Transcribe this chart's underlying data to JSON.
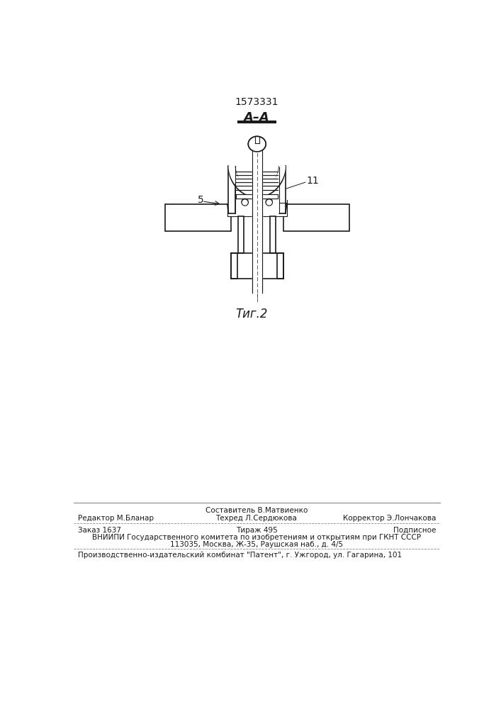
{
  "patent_number": "1573331",
  "section_label": "A–A",
  "fig_label": "Τиг.2",
  "label_5": "5",
  "label_11": "11",
  "footer_line1_left": "Редактор М.Бланар",
  "footer_line1_center_top": "Составитель В.Матвиенко",
  "footer_line1_center": "Техред Л.Сердюкова",
  "footer_line1_right": "Корректор Э.Лончакова",
  "footer_line2_left": "Заказ 1637",
  "footer_line2_center": "Тираж 495",
  "footer_line2_right": "Подписное",
  "footer_line3": "ВНИИПИ Государственного комитета по изобретениям и открытиям при ГКНТ СССР",
  "footer_line4": "113035, Москва, Ж-35, Раушская наб., д. 4/5",
  "footer_line5": "Производственно-издательский комбинат \"Патент\", г. Ужгород, ул. Гагарина, 101",
  "bg_color": "#ffffff"
}
